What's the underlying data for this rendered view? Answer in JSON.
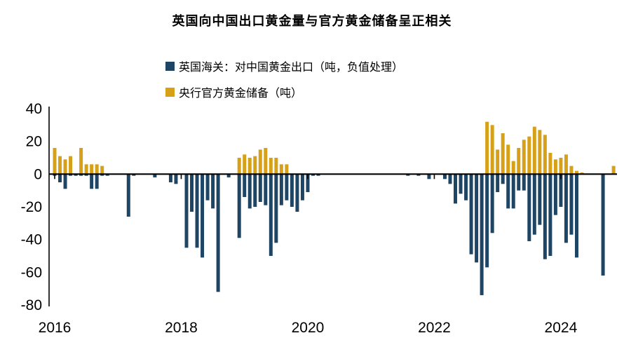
{
  "title": "英国向中国出口黄金量与官方黄金储备呈正相关",
  "legend": {
    "exports_label": "英国海关：对中国黄金出口（吨，负值处理）",
    "reserves_label": "央行官方黄金储备（吨）"
  },
  "colors": {
    "exports": "#1F4565",
    "reserves": "#D6A119",
    "axis": "#000000",
    "text": "#000000"
  },
  "chart_data": {
    "type": "bar",
    "title": "英国向中国出口黄金量与官方黄金储备呈正相关",
    "xlabel": "",
    "ylabel": "",
    "ylim": [
      -80,
      40
    ],
    "grid": false,
    "legend_position": "top-left",
    "y_ticks": [
      40,
      20,
      0,
      -20,
      -40,
      -60,
      -80
    ],
    "x_ticks": [
      "2016",
      "2018",
      "2020",
      "2022",
      "2024"
    ],
    "x_tick_month_index": [
      0,
      24,
      48,
      72,
      96
    ],
    "months": [
      "2016-01",
      "2016-02",
      "2016-03",
      "2016-04",
      "2016-05",
      "2016-06",
      "2016-07",
      "2016-08",
      "2016-09",
      "2016-10",
      "2016-11",
      "2016-12",
      "2017-01",
      "2017-02",
      "2017-03",
      "2017-04",
      "2017-05",
      "2017-06",
      "2017-07",
      "2017-08",
      "2017-09",
      "2017-10",
      "2017-11",
      "2017-12",
      "2018-01",
      "2018-02",
      "2018-03",
      "2018-04",
      "2018-05",
      "2018-06",
      "2018-07",
      "2018-08",
      "2018-09",
      "2018-10",
      "2018-11",
      "2018-12",
      "2019-01",
      "2019-02",
      "2019-03",
      "2019-04",
      "2019-05",
      "2019-06",
      "2019-07",
      "2019-08",
      "2019-09",
      "2019-10",
      "2019-11",
      "2019-12",
      "2020-01",
      "2020-02",
      "2020-03",
      "2020-04",
      "2020-05",
      "2020-06",
      "2020-07",
      "2020-08",
      "2020-09",
      "2020-10",
      "2020-11",
      "2020-12",
      "2021-01",
      "2021-02",
      "2021-03",
      "2021-04",
      "2021-05",
      "2021-06",
      "2021-07",
      "2021-08",
      "2021-09",
      "2021-10",
      "2021-11",
      "2021-12",
      "2022-01",
      "2022-02",
      "2022-03",
      "2022-04",
      "2022-05",
      "2022-06",
      "2022-07",
      "2022-08",
      "2022-09",
      "2022-10",
      "2022-11",
      "2022-12",
      "2023-01",
      "2023-02",
      "2023-03",
      "2023-04",
      "2023-05",
      "2023-06",
      "2023-07",
      "2023-08",
      "2023-09",
      "2023-10",
      "2023-11",
      "2023-12",
      "2024-01",
      "2024-02",
      "2024-03",
      "2024-04",
      "2024-05",
      "2024-06",
      "2024-07",
      "2024-08",
      "2024-09",
      "2024-10",
      "2024-11"
    ],
    "series": [
      {
        "name": "英国海关：对中国黄金出口（吨，负值处理）",
        "color": "#1F4565",
        "values": [
          -1,
          -5,
          -9,
          -1,
          -1,
          -1,
          -1,
          -9,
          -9,
          -1,
          -1,
          0,
          0,
          0,
          -26,
          -1,
          0,
          0,
          0,
          -2,
          0,
          0,
          -5,
          -6,
          0,
          -45,
          -23,
          -45,
          -51,
          -16,
          -21,
          -72,
          0,
          -2,
          0,
          -39,
          -14,
          -21,
          -20,
          -17,
          -19,
          -50,
          -42,
          -19,
          -16,
          -20,
          -23,
          -16,
          -11,
          -1,
          -1,
          0,
          0,
          0,
          0,
          0,
          0,
          0,
          0,
          0,
          0,
          0,
          0,
          0,
          0,
          0,
          0,
          -1,
          0,
          -1,
          0,
          -3,
          0,
          0,
          -3,
          -6,
          -18,
          -12,
          -16,
          -49,
          -54,
          -74,
          -57,
          -36,
          -11,
          -6,
          -21,
          -21,
          -10,
          -10,
          -41,
          -37,
          -31,
          -52,
          -50,
          -25,
          -20,
          -42,
          -37,
          -51,
          0,
          0,
          0,
          0,
          -62,
          0,
          0
        ]
      },
      {
        "name": "央行官方黄金储备（吨）",
        "color": "#D6A119",
        "values": [
          16,
          11,
          9,
          11,
          0,
          16,
          6,
          6,
          6,
          5,
          0,
          0,
          0,
          0,
          0,
          0,
          0,
          0,
          0,
          0,
          0,
          0,
          0,
          0,
          0,
          0,
          0,
          0,
          0,
          0,
          0,
          0,
          0,
          0,
          0,
          10,
          12,
          10,
          11,
          15,
          16,
          10,
          10,
          6,
          6,
          0,
          0,
          0,
          0,
          0,
          0,
          0,
          0,
          0,
          0,
          0,
          0,
          0,
          0,
          0,
          0,
          0,
          0,
          0,
          0,
          0,
          0,
          0,
          0,
          0,
          0,
          0,
          0,
          0,
          0,
          0,
          0,
          0,
          0,
          0,
          0,
          0,
          32,
          30,
          15,
          25,
          18,
          8,
          16,
          21,
          23,
          29,
          27,
          24,
          13,
          9,
          10,
          12,
          5,
          2,
          1,
          0,
          0,
          0,
          0,
          0,
          5
        ]
      }
    ]
  }
}
